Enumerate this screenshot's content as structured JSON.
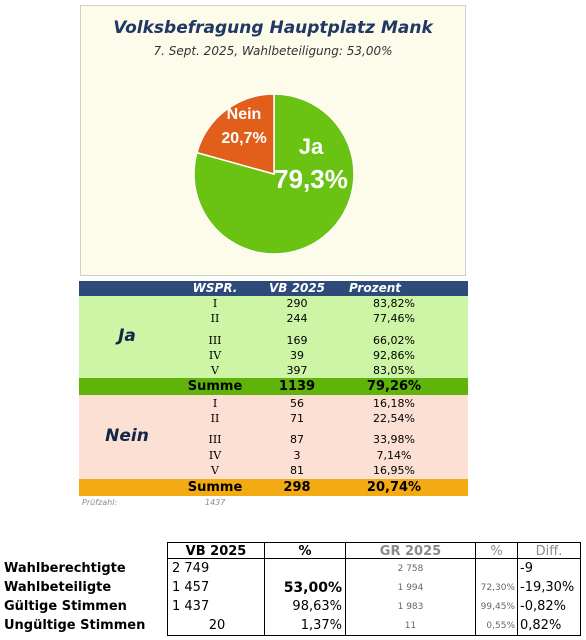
{
  "chart": {
    "title": "Volksbefragung Hauptplatz Mank",
    "subtitle": "7. Sept. 2025, Wahlbeteiligung: 53,00%"
  },
  "chart_data": {
    "type": "pie",
    "title": "Volksbefragung Hauptplatz Mank",
    "subtitle": "7. Sept. 2025, Wahlbeteiligung: 53,00%",
    "slices": [
      {
        "label": "Ja",
        "value": 79.3,
        "display": "79,3%",
        "color": "#6ac212"
      },
      {
        "label": "Nein",
        "value": 20.7,
        "display": "20,7%",
        "color": "#e25f1b"
      }
    ]
  },
  "results": {
    "headers": {
      "wspr": "WSPR.",
      "vb": "VB 2025",
      "pct": "Prozent"
    },
    "ja": {
      "label": "Ja",
      "rows": [
        {
          "wspr": "I",
          "vb": "290",
          "pct": "83,82%"
        },
        {
          "wspr": "II",
          "vb": "244",
          "pct": "77,46%"
        },
        {
          "wspr": "III",
          "vb": "169",
          "pct": "66,02%"
        },
        {
          "wspr": "IV",
          "vb": "39",
          "pct": "92,86%"
        },
        {
          "wspr": "V",
          "vb": "397",
          "pct": "83,05%"
        }
      ],
      "sum_label": "Summe",
      "sum_vb": "1139",
      "sum_pct": "79,26%"
    },
    "nein": {
      "label": "Nein",
      "rows": [
        {
          "wspr": "I",
          "vb": "56",
          "pct": "16,18%"
        },
        {
          "wspr": "II",
          "vb": "71",
          "pct": "22,54%"
        },
        {
          "wspr": "III",
          "vb": "87",
          "pct": "33,98%"
        },
        {
          "wspr": "IV",
          "vb": "3",
          "pct": "7,14%"
        },
        {
          "wspr": "V",
          "vb": "81",
          "pct": "16,95%"
        }
      ],
      "sum_label": "Summe",
      "sum_vb": "298",
      "sum_pct": "20,74%"
    },
    "pruefzahl_label": "Prüfzahl:",
    "pruefzahl_value": "1437"
  },
  "stats": {
    "headers": {
      "vb": "VB 2025",
      "pct": "%",
      "gr": "GR 2025",
      "gr_pct": "%",
      "diff": "Diff."
    },
    "rows": [
      {
        "label": "Wahlberechtigte",
        "vb": "2 749",
        "pct": "",
        "gr": "2 758",
        "gr_pct": "",
        "diff": "-9"
      },
      {
        "label": "Wahlbeteiligte",
        "vb": "1 457",
        "pct": "53,00%",
        "gr": "1 994",
        "gr_pct": "72,30%",
        "diff": "-19,30%"
      },
      {
        "label": "Gültige Stimmen",
        "vb": "1 437",
        "pct": "98,63%",
        "gr": "1 983",
        "gr_pct": "99,45%",
        "diff": "-0,82%"
      },
      {
        "label": "Ungültige Stimmen",
        "vb": "20",
        "pct": "1,37%",
        "gr": "11",
        "gr_pct": "0,55%",
        "diff": "0,82%"
      }
    ]
  }
}
